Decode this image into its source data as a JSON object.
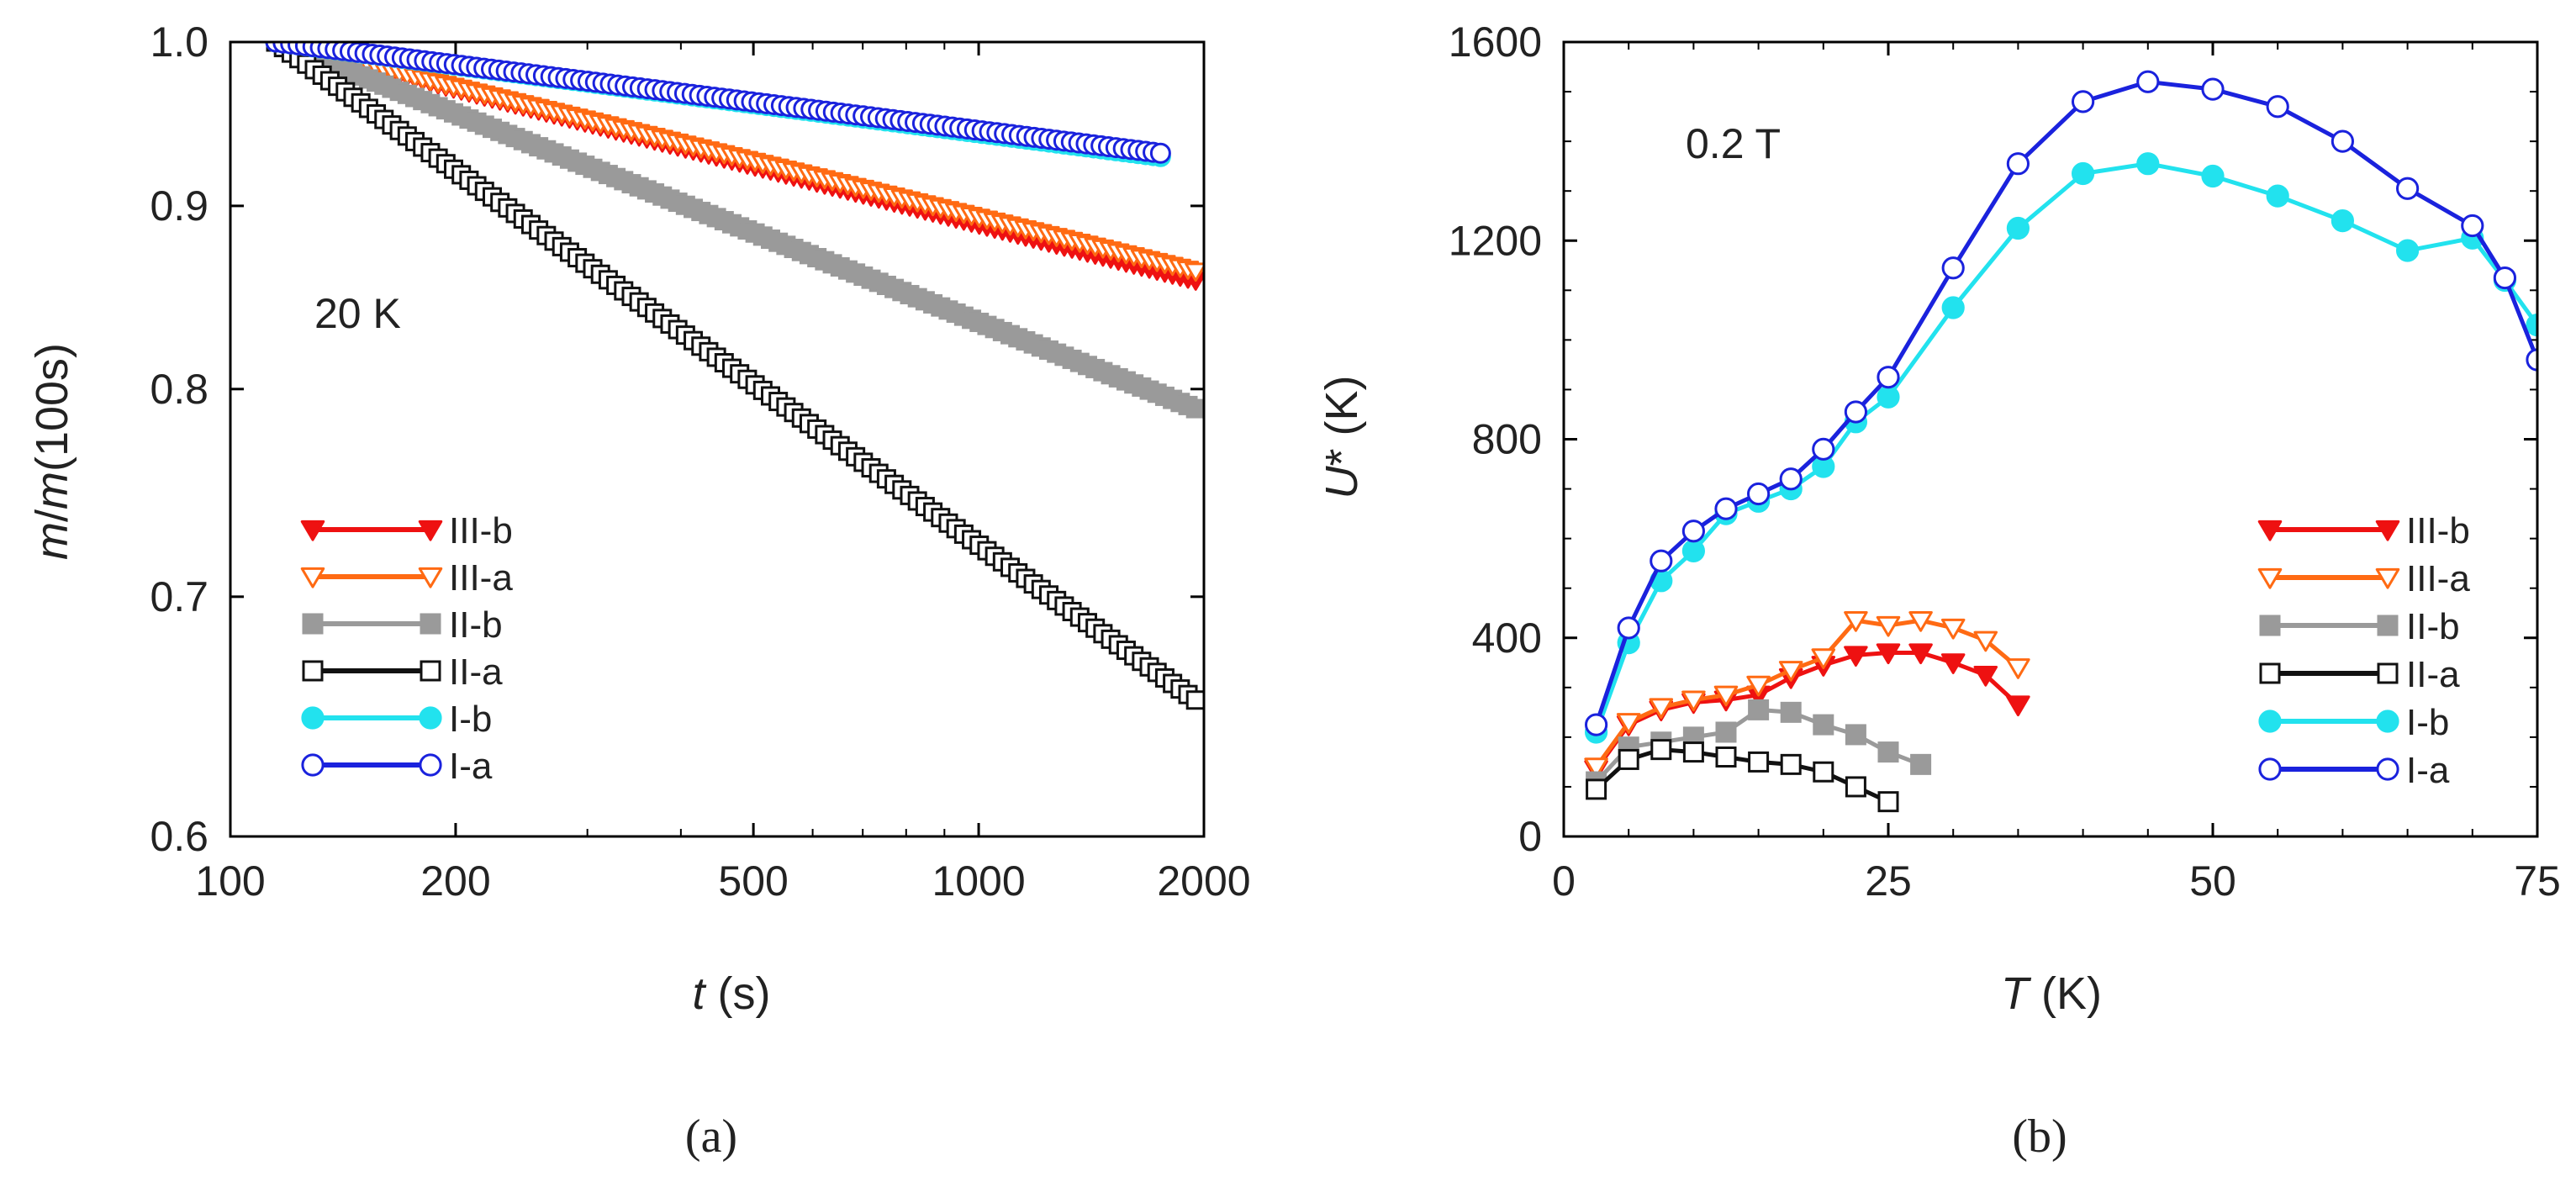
{
  "chart_data": [
    {
      "type": "line",
      "panel_label": "(a)",
      "annotation": "20 K",
      "xlabel": {
        "var": "t",
        "unit": " (s)"
      },
      "ylabel": {
        "var_a": "m",
        "sep": "/",
        "var_b": "m",
        "rest": "(100s)"
      },
      "xscale": "log",
      "yscale": "log",
      "xlim": [
        100,
        2000
      ],
      "ylim": [
        0.6,
        1.0
      ],
      "xticks": [
        100,
        200,
        500,
        1000,
        2000
      ],
      "xtick_labels": [
        "100",
        "200",
        "500",
        "1000",
        "2000"
      ],
      "yticks": [
        0.6,
        0.7,
        0.8,
        0.9,
        1.0
      ],
      "ytick_labels": [
        "0.6",
        "0.7",
        "0.8",
        "0.9",
        "1.0"
      ],
      "legend_location": "lower-left",
      "series": [
        {
          "name": "III-b",
          "color": "#ee1111",
          "marker": "triangle-down",
          "filled": true,
          "x": [
            115,
            1950
          ],
          "y": [
            1.0,
            0.858
          ],
          "n": 120
        },
        {
          "name": "III-a",
          "color": "#ff6a13",
          "marker": "triangle-down",
          "filled": false,
          "x": [
            115,
            1950
          ],
          "y": [
            1.0,
            0.863
          ],
          "n": 120
        },
        {
          "name": "II-b",
          "color": "#9a9a9a",
          "marker": "square",
          "filled": true,
          "x": [
            115,
            1950
          ],
          "y": [
            1.0,
            0.79
          ],
          "n": 120
        },
        {
          "name": "II-a",
          "color": "#111111",
          "marker": "square",
          "filled": false,
          "x": [
            115,
            1950
          ],
          "y": [
            1.0,
            0.655
          ],
          "n": 120
        },
        {
          "name": "I-b",
          "color": "#22e2ee",
          "marker": "circle",
          "filled": true,
          "x": [
            115,
            1750
          ],
          "y": [
            1.0,
            0.929
          ],
          "n": 120
        },
        {
          "name": "I-a",
          "color": "#1a22dd",
          "marker": "circle",
          "filled": false,
          "x": [
            115,
            1750
          ],
          "y": [
            1.0,
            0.931
          ],
          "n": 120
        }
      ]
    },
    {
      "type": "line",
      "panel_label": "(b)",
      "annotation": "0.2 T",
      "xlabel": {
        "var": "T",
        "unit": " (K)"
      },
      "ylabel": {
        "var": "U",
        "sup": "*",
        "unit": " (K)"
      },
      "xlim": [
        0,
        75
      ],
      "ylim": [
        0,
        1600
      ],
      "xticks": [
        0,
        25,
        50,
        75
      ],
      "xtick_labels": [
        "0",
        "25",
        "50",
        "75"
      ],
      "yticks": [
        0,
        400,
        800,
        1200,
        1600
      ],
      "ytick_labels": [
        "0",
        "400",
        "800",
        "1200",
        "1600"
      ],
      "legend_location": "lower-right",
      "series": [
        {
          "name": "III-b",
          "color": "#ee1111",
          "marker": "triangle-down",
          "filled": true,
          "x": [
            2.5,
            5,
            7.5,
            10,
            12.5,
            15,
            17.5,
            20,
            22.5,
            25,
            27.5,
            30,
            32.5,
            35
          ],
          "y": [
            135,
            225,
            255,
            270,
            275,
            285,
            320,
            345,
            365,
            370,
            370,
            350,
            325,
            265
          ]
        },
        {
          "name": "III-a",
          "color": "#ff6a13",
          "marker": "triangle-down",
          "filled": false,
          "x": [
            2.5,
            5,
            7.5,
            10,
            12.5,
            15,
            17.5,
            20,
            22.5,
            25,
            27.5,
            30,
            32.5,
            35
          ],
          "y": [
            140,
            230,
            260,
            275,
            285,
            305,
            335,
            360,
            435,
            425,
            435,
            420,
            395,
            340
          ]
        },
        {
          "name": "II-b",
          "color": "#9a9a9a",
          "marker": "square",
          "filled": true,
          "x": [
            2.5,
            5,
            7.5,
            10,
            12.5,
            15,
            17.5,
            20,
            22.5,
            25,
            27.5
          ],
          "y": [
            110,
            180,
            190,
            200,
            210,
            255,
            250,
            225,
            205,
            170,
            145
          ]
        },
        {
          "name": "II-a",
          "color": "#111111",
          "marker": "square",
          "filled": false,
          "x": [
            2.5,
            5,
            7.5,
            10,
            12.5,
            15,
            17.5,
            20,
            22.5,
            25
          ],
          "y": [
            95,
            155,
            175,
            170,
            160,
            150,
            145,
            130,
            100,
            70
          ]
        },
        {
          "name": "I-b",
          "color": "#22e2ee",
          "marker": "circle",
          "filled": true,
          "x": [
            2.5,
            5,
            7.5,
            10,
            12.5,
            15,
            17.5,
            20,
            22.5,
            25,
            30,
            35,
            40,
            45,
            50,
            55,
            60,
            65,
            70,
            72.5,
            75
          ],
          "y": [
            210,
            390,
            515,
            575,
            650,
            675,
            700,
            745,
            835,
            885,
            1065,
            1225,
            1335,
            1355,
            1330,
            1290,
            1240,
            1180,
            1205,
            1120,
            1030
          ]
        },
        {
          "name": "I-a",
          "color": "#1a22dd",
          "marker": "circle",
          "filled": false,
          "x": [
            2.5,
            5,
            7.5,
            10,
            12.5,
            15,
            17.5,
            20,
            22.5,
            25,
            30,
            35,
            40,
            45,
            50,
            55,
            60,
            65,
            70,
            72.5,
            75
          ],
          "y": [
            225,
            420,
            555,
            615,
            660,
            690,
            720,
            780,
            855,
            925,
            1145,
            1355,
            1480,
            1520,
            1505,
            1470,
            1400,
            1305,
            1230,
            1125,
            960
          ]
        }
      ]
    }
  ]
}
